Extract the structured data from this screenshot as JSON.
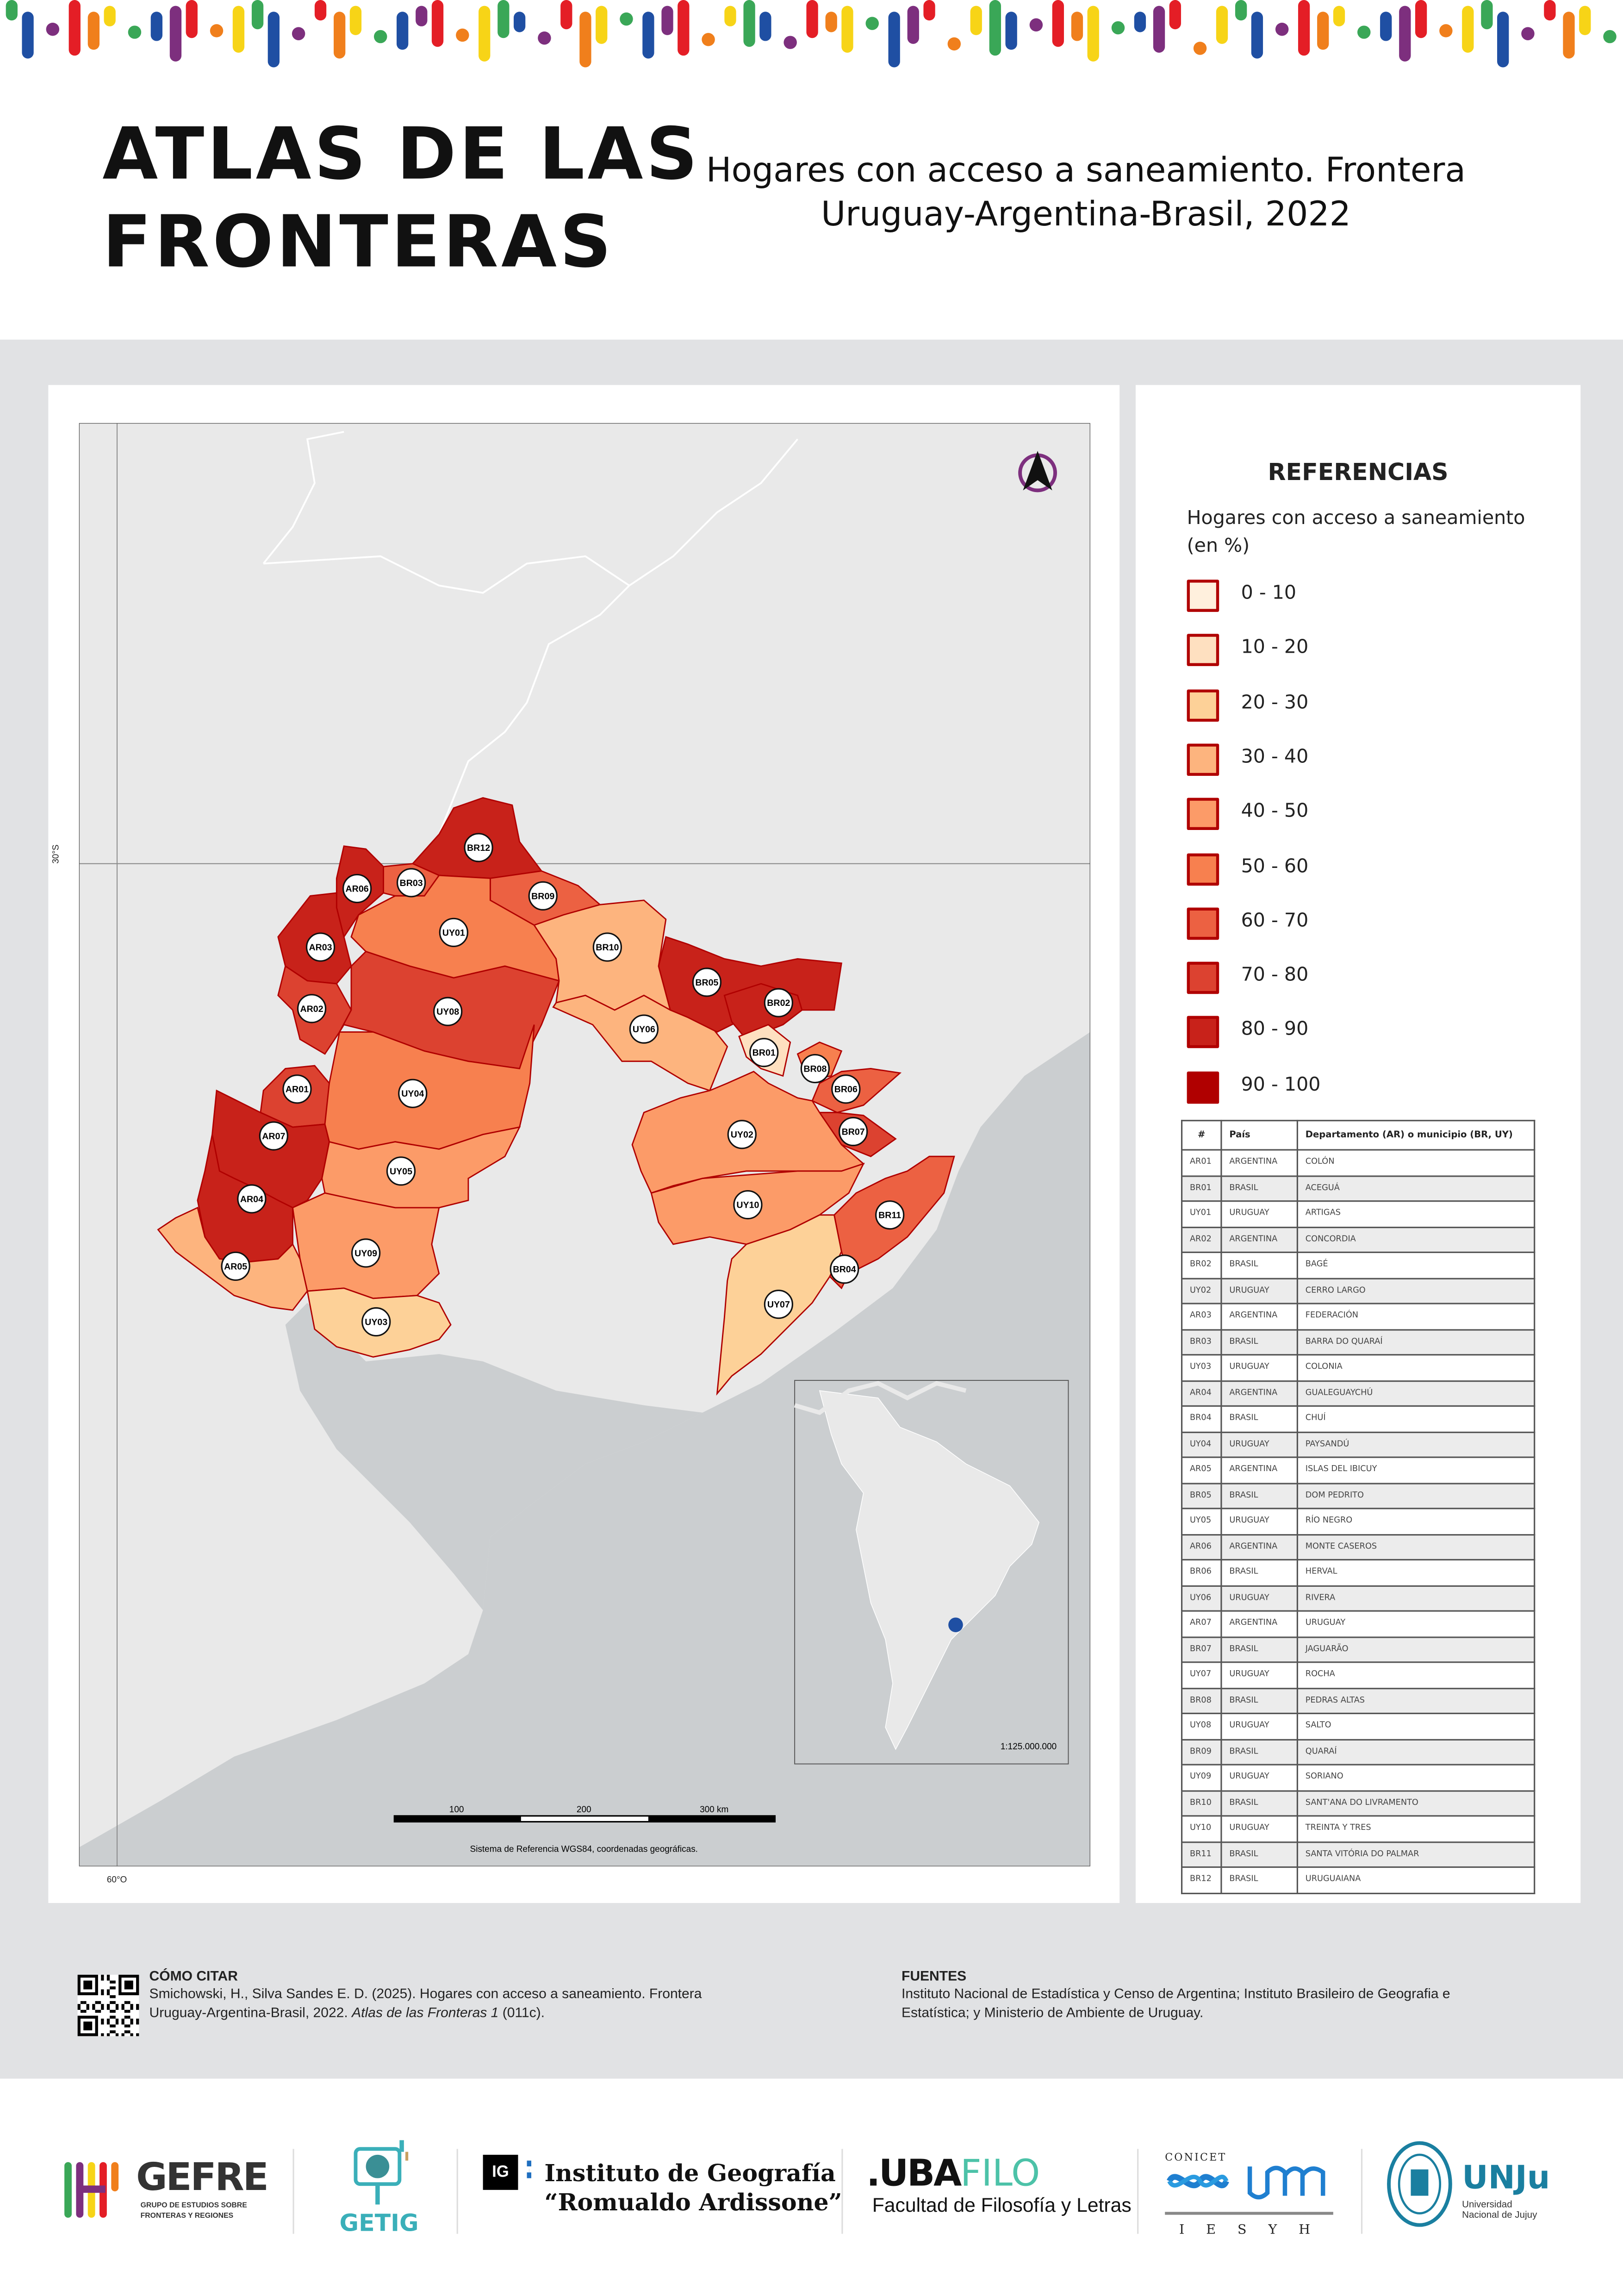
{
  "header": {
    "title_line1": "ATLAS DE LAS",
    "title_line2": "FRONTERAS",
    "subtitle_line1": "Hogares con acceso a saneamiento. Frontera",
    "subtitle_line2": "Uruguay-Argentina-Brasil, 2022"
  },
  "decor_colors": [
    "#e41e26",
    "#f07f1c",
    "#f7d417",
    "#3aa757",
    "#1f4fa3",
    "#7d2f7e"
  ],
  "map": {
    "lat_label": "30°S",
    "lon_label": "60°O",
    "scale_ticks": [
      "100",
      "200",
      "300 km"
    ],
    "crs_note": "Sistema de Referencia WGS84, coordenadas geográficas.",
    "inset_scale": "1:125.000.000",
    "land_color": "#e9e9e9",
    "water_color": "#cbced0",
    "regions": [
      {
        "id": "BR12",
        "class": 8
      },
      {
        "id": "AR06",
        "class": 8
      },
      {
        "id": "BR03",
        "class": 6
      },
      {
        "id": "BR09",
        "class": 6
      },
      {
        "id": "UY01",
        "class": 5
      },
      {
        "id": "AR03",
        "class": 8
      },
      {
        "id": "AR02",
        "class": 7
      },
      {
        "id": "UY08",
        "class": 7
      },
      {
        "id": "BR10",
        "class": 3
      },
      {
        "id": "UY06",
        "class": 3
      },
      {
        "id": "BR05",
        "class": 8
      },
      {
        "id": "BR02",
        "class": 8
      },
      {
        "id": "BR01",
        "class": 1
      },
      {
        "id": "UY04",
        "class": 5
      },
      {
        "id": "AR01",
        "class": 7
      },
      {
        "id": "BR08",
        "class": 5
      },
      {
        "id": "BR06",
        "class": 6
      },
      {
        "id": "BR07",
        "class": 7
      },
      {
        "id": "UY02",
        "class": 4
      },
      {
        "id": "UY10",
        "class": 4
      },
      {
        "id": "BR11",
        "class": 6
      },
      {
        "id": "BR04",
        "class": 6
      },
      {
        "id": "UY07",
        "class": 2
      },
      {
        "id": "AR07",
        "class": 8
      },
      {
        "id": "AR04",
        "class": 8
      },
      {
        "id": "UY05",
        "class": 4
      },
      {
        "id": "UY09",
        "class": 4
      },
      {
        "id": "AR05",
        "class": 3
      },
      {
        "id": "UY03",
        "class": 2
      }
    ]
  },
  "legend": {
    "title": "REFERENCIAS",
    "subtitle": "Hogares con acceso a saneamiento (en %)",
    "classes": [
      {
        "label": "0 - 10",
        "color": "#fff0dd"
      },
      {
        "label": "10 - 20",
        "color": "#fee0c0"
      },
      {
        "label": "20 - 30",
        "color": "#fdd198"
      },
      {
        "label": "30 - 40",
        "color": "#fdb47e"
      },
      {
        "label": "40 - 50",
        "color": "#fc9b68"
      },
      {
        "label": "50 - 60",
        "color": "#f7804f"
      },
      {
        "label": "60 - 70",
        "color": "#ec6142"
      },
      {
        "label": "70 - 80",
        "color": "#dc4230"
      },
      {
        "label": "80 - 90",
        "color": "#c8221a"
      },
      {
        "label": "90 - 100",
        "color": "#b00000"
      }
    ]
  },
  "table": {
    "headers": [
      "#",
      "País",
      "Departamento (AR) o municipio (BR, UY)"
    ],
    "rows": [
      [
        "AR01",
        "ARGENTINA",
        "COLÓN"
      ],
      [
        "BR01",
        "BRASIL",
        "ACEGUÁ"
      ],
      [
        "UY01",
        "URUGUAY",
        "ARTIGAS"
      ],
      [
        "AR02",
        "ARGENTINA",
        "CONCORDIA"
      ],
      [
        "BR02",
        "BRASIL",
        "BAGÉ"
      ],
      [
        "UY02",
        "URUGUAY",
        "CERRO LARGO"
      ],
      [
        "AR03",
        "ARGENTINA",
        "FEDERACIÓN"
      ],
      [
        "BR03",
        "BRASIL",
        "BARRA DO QUARAÍ"
      ],
      [
        "UY03",
        "URUGUAY",
        "COLONIA"
      ],
      [
        "AR04",
        "ARGENTINA",
        "GUALEGUAYCHÚ"
      ],
      [
        "BR04",
        "BRASIL",
        "CHUÍ"
      ],
      [
        "UY04",
        "URUGUAY",
        "PAYSANDÚ"
      ],
      [
        "AR05",
        "ARGENTINA",
        "ISLAS DEL IBICUY"
      ],
      [
        "BR05",
        "BRASIL",
        "DOM PEDRITO"
      ],
      [
        "UY05",
        "URUGUAY",
        "RÍO NEGRO"
      ],
      [
        "AR06",
        "ARGENTINA",
        "MONTE CASEROS"
      ],
      [
        "BR06",
        "BRASIL",
        "HERVAL"
      ],
      [
        "UY06",
        "URUGUAY",
        "RIVERA"
      ],
      [
        "AR07",
        "ARGENTINA",
        "URUGUAY"
      ],
      [
        "BR07",
        "BRASIL",
        "JAGUARÃO"
      ],
      [
        "UY07",
        "URUGUAY",
        "ROCHA"
      ],
      [
        "BR08",
        "BRASIL",
        "PEDRAS ALTAS"
      ],
      [
        "UY08",
        "URUGUAY",
        "SALTO"
      ],
      [
        "BR09",
        "BRASIL",
        "QUARAÍ"
      ],
      [
        "UY09",
        "URUGUAY",
        "SORIANO"
      ],
      [
        "BR10",
        "BRASIL",
        "SANT'ANA DO LIVRAMENTO"
      ],
      [
        "UY10",
        "URUGUAY",
        "TREINTA Y TRES"
      ],
      [
        "BR11",
        "BRASIL",
        "SANTA VITÓRIA DO PALMAR"
      ],
      [
        "BR12",
        "BRASIL",
        "URUGUAIANA"
      ]
    ]
  },
  "citation": {
    "heading": "CÓMO CITAR",
    "text_line1": "Smichowski, H., Silva Sandes E. D. (2025). Hogares con acceso a saneamiento. Frontera",
    "text_line2a": "Uruguay-Argentina-Brasil, 2022. ",
    "text_line2_italic": "Atlas de las Fronteras 1",
    "text_line2b": " (011c)."
  },
  "sources": {
    "heading": "FUENTES",
    "text_line1": "Instituto Nacional de Estadística y Censo de Argentina; Instituto Brasileiro de Geografia e",
    "text_line2": "Estatística; y Ministerio de Ambiente de Uruguay."
  },
  "logos": {
    "gefre": "GEFRE",
    "gefre_sub1": "GRUPO DE ESTUDIOS SOBRE",
    "gefre_sub2": "FRONTERAS Y REGIONES",
    "getig": "GETIG",
    "ig_badge": "IG",
    "ig_line1": "Instituto de Geografía",
    "ig_line2": "“Romualdo Ardissone”",
    "uba": ".UBA",
    "filo": "FILO",
    "filo_sub": "Facultad de Filosofía y Letras",
    "conicet": "CONICET",
    "iesyh": "I E S Y H",
    "unju": "UNJu",
    "unju_sub1": "Universidad",
    "unju_sub2": "Nacional de Jujuy"
  }
}
